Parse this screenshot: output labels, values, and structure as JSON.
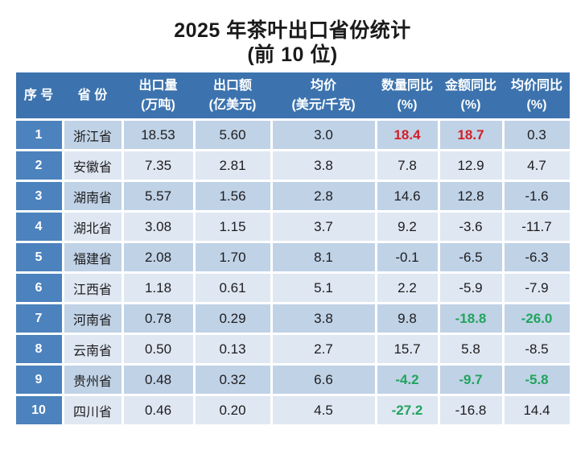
{
  "title": "2025 年茶叶出口省份统计",
  "subtitle": "(前 10 位)",
  "colors": {
    "page_bg": "#ffffff",
    "title": "#1a1a1a",
    "header_bg": "#3c73ae",
    "header_text": "#ffffff",
    "index_bg": "#4c82bd",
    "row_odd_bg": "#c0d2e6",
    "row_even_bg": "#dfe7f2",
    "text": "#1d1d1f",
    "red": "#d22027",
    "green": "#21a45d"
  },
  "table": {
    "headers": [
      {
        "line1": "序 号",
        "line2": ""
      },
      {
        "line1": "省 份",
        "line2": ""
      },
      {
        "line1": "出口量",
        "line2": "(万吨)"
      },
      {
        "line1": "出口额",
        "line2": "(亿美元)"
      },
      {
        "line1": "均价",
        "line2": "(美元/千克)"
      },
      {
        "line1": "数量同比",
        "line2": "(%)"
      },
      {
        "line1": "金额同比",
        "line2": "(%)"
      },
      {
        "line1": "均价同比",
        "line2": "(%)"
      }
    ],
    "rows": [
      {
        "rank": "1",
        "province": "浙江省",
        "volume": "18.53",
        "value": "5.60",
        "avg_price": "3.0",
        "volume_yoy": "18.4",
        "value_yoy": "18.7",
        "price_yoy": "0.3",
        "highlights": {
          "volume_yoy": "red",
          "value_yoy": "red"
        }
      },
      {
        "rank": "2",
        "province": "安徽省",
        "volume": "7.35",
        "value": "2.81",
        "avg_price": "3.8",
        "volume_yoy": "7.8",
        "value_yoy": "12.9",
        "price_yoy": "4.7",
        "highlights": {}
      },
      {
        "rank": "3",
        "province": "湖南省",
        "volume": "5.57",
        "value": "1.56",
        "avg_price": "2.8",
        "volume_yoy": "14.6",
        "value_yoy": "12.8",
        "price_yoy": "-1.6",
        "highlights": {}
      },
      {
        "rank": "4",
        "province": "湖北省",
        "volume": "3.08",
        "value": "1.15",
        "avg_price": "3.7",
        "volume_yoy": "9.2",
        "value_yoy": "-3.6",
        "price_yoy": "-11.7",
        "highlights": {}
      },
      {
        "rank": "5",
        "province": "福建省",
        "volume": "2.08",
        "value": "1.70",
        "avg_price": "8.1",
        "volume_yoy": "-0.1",
        "value_yoy": "-6.5",
        "price_yoy": "-6.3",
        "highlights": {}
      },
      {
        "rank": "6",
        "province": "江西省",
        "volume": "1.18",
        "value": "0.61",
        "avg_price": "5.1",
        "volume_yoy": "2.2",
        "value_yoy": "-5.9",
        "price_yoy": "-7.9",
        "highlights": {}
      },
      {
        "rank": "7",
        "province": "河南省",
        "volume": "0.78",
        "value": "0.29",
        "avg_price": "3.8",
        "volume_yoy": "9.8",
        "value_yoy": "-18.8",
        "price_yoy": "-26.0",
        "highlights": {
          "value_yoy": "green",
          "price_yoy": "green"
        }
      },
      {
        "rank": "8",
        "province": "云南省",
        "volume": "0.50",
        "value": "0.13",
        "avg_price": "2.7",
        "volume_yoy": "15.7",
        "value_yoy": "5.8",
        "price_yoy": "-8.5",
        "highlights": {}
      },
      {
        "rank": "9",
        "province": "贵州省",
        "volume": "0.48",
        "value": "0.32",
        "avg_price": "6.6",
        "volume_yoy": "-4.2",
        "value_yoy": "-9.7",
        "price_yoy": "-5.8",
        "highlights": {
          "volume_yoy": "green",
          "value_yoy": "green",
          "price_yoy": "green"
        }
      },
      {
        "rank": "10",
        "province": "四川省",
        "volume": "0.46",
        "value": "0.20",
        "avg_price": "4.5",
        "volume_yoy": "-27.2",
        "value_yoy": "-16.8",
        "price_yoy": "14.4",
        "highlights": {
          "volume_yoy": "green"
        }
      }
    ]
  },
  "chart_data": {
    "type": "table",
    "title": "2025 年茶叶出口省份统计 (前 10 位)",
    "columns": [
      "序号",
      "省份",
      "出口量(万吨)",
      "出口额(亿美元)",
      "均价(美元/千克)",
      "数量同比(%)",
      "金额同比(%)",
      "均价同比(%)"
    ],
    "rows": [
      [
        1,
        "浙江省",
        18.53,
        5.6,
        3.0,
        18.4,
        18.7,
        0.3
      ],
      [
        2,
        "安徽省",
        7.35,
        2.81,
        3.8,
        7.8,
        12.9,
        4.7
      ],
      [
        3,
        "湖南省",
        5.57,
        1.56,
        2.8,
        14.6,
        12.8,
        -1.6
      ],
      [
        4,
        "湖北省",
        3.08,
        1.15,
        3.7,
        9.2,
        -3.6,
        -11.7
      ],
      [
        5,
        "福建省",
        2.08,
        1.7,
        8.1,
        -0.1,
        -6.5,
        -6.3
      ],
      [
        6,
        "江西省",
        1.18,
        0.61,
        5.1,
        2.2,
        -5.9,
        -7.9
      ],
      [
        7,
        "河南省",
        0.78,
        0.29,
        3.8,
        9.8,
        -18.8,
        -26.0
      ],
      [
        8,
        "云南省",
        0.5,
        0.13,
        2.7,
        15.7,
        5.8,
        -8.5
      ],
      [
        9,
        "贵州省",
        0.48,
        0.32,
        6.6,
        -4.2,
        -9.7,
        -5.8
      ],
      [
        10,
        "四川省",
        0.46,
        0.2,
        4.5,
        -27.2,
        -16.8,
        14.4
      ]
    ]
  }
}
